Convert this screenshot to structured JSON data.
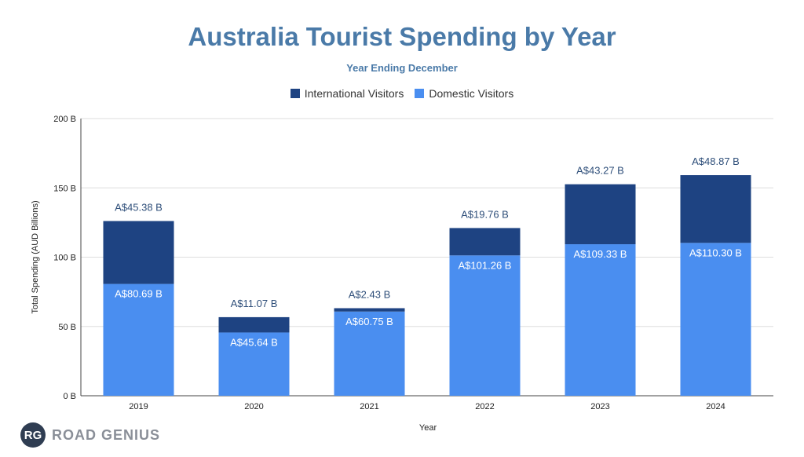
{
  "chart_data": {
    "type": "bar",
    "stacked": true,
    "title": "Australia Tourist Spending by Year",
    "subtitle": "Year Ending December",
    "xlabel": "Year",
    "ylabel": "Total Spending (AUD Billions)",
    "ylim": [
      0,
      200
    ],
    "yticks": [
      0,
      50,
      100,
      150,
      200
    ],
    "ytick_labels": [
      "0 B",
      "50 B",
      "100 B",
      "150 B",
      "200 B"
    ],
    "grid": true,
    "legend_position": "top-center",
    "categories": [
      "2019",
      "2020",
      "2021",
      "2022",
      "2023",
      "2024"
    ],
    "series": [
      {
        "name": "Domestic Visitors",
        "color": "#4a8ef0",
        "values": [
          80.69,
          45.64,
          60.75,
          101.26,
          109.33,
          110.3
        ],
        "labels": [
          "A$80.69 B",
          "A$45.64 B",
          "A$60.75 B",
          "A$101.26 B",
          "A$109.33 B",
          "A$110.30 B"
        ]
      },
      {
        "name": "International Visitors",
        "color": "#1e4382",
        "values": [
          45.38,
          11.07,
          2.43,
          19.76,
          43.27,
          48.87
        ],
        "labels": [
          "A$45.38 B",
          "A$11.07 B",
          "A$2.43 B",
          "A$19.76 B",
          "A$43.27 B",
          "A$48.87 B"
        ]
      }
    ]
  },
  "legend": [
    {
      "label": "International Visitors",
      "color": "#1e4382"
    },
    {
      "label": "Domestic Visitors",
      "color": "#4a8ef0"
    }
  ],
  "logo": {
    "badge": "RG",
    "text": "ROAD GENIUS"
  }
}
